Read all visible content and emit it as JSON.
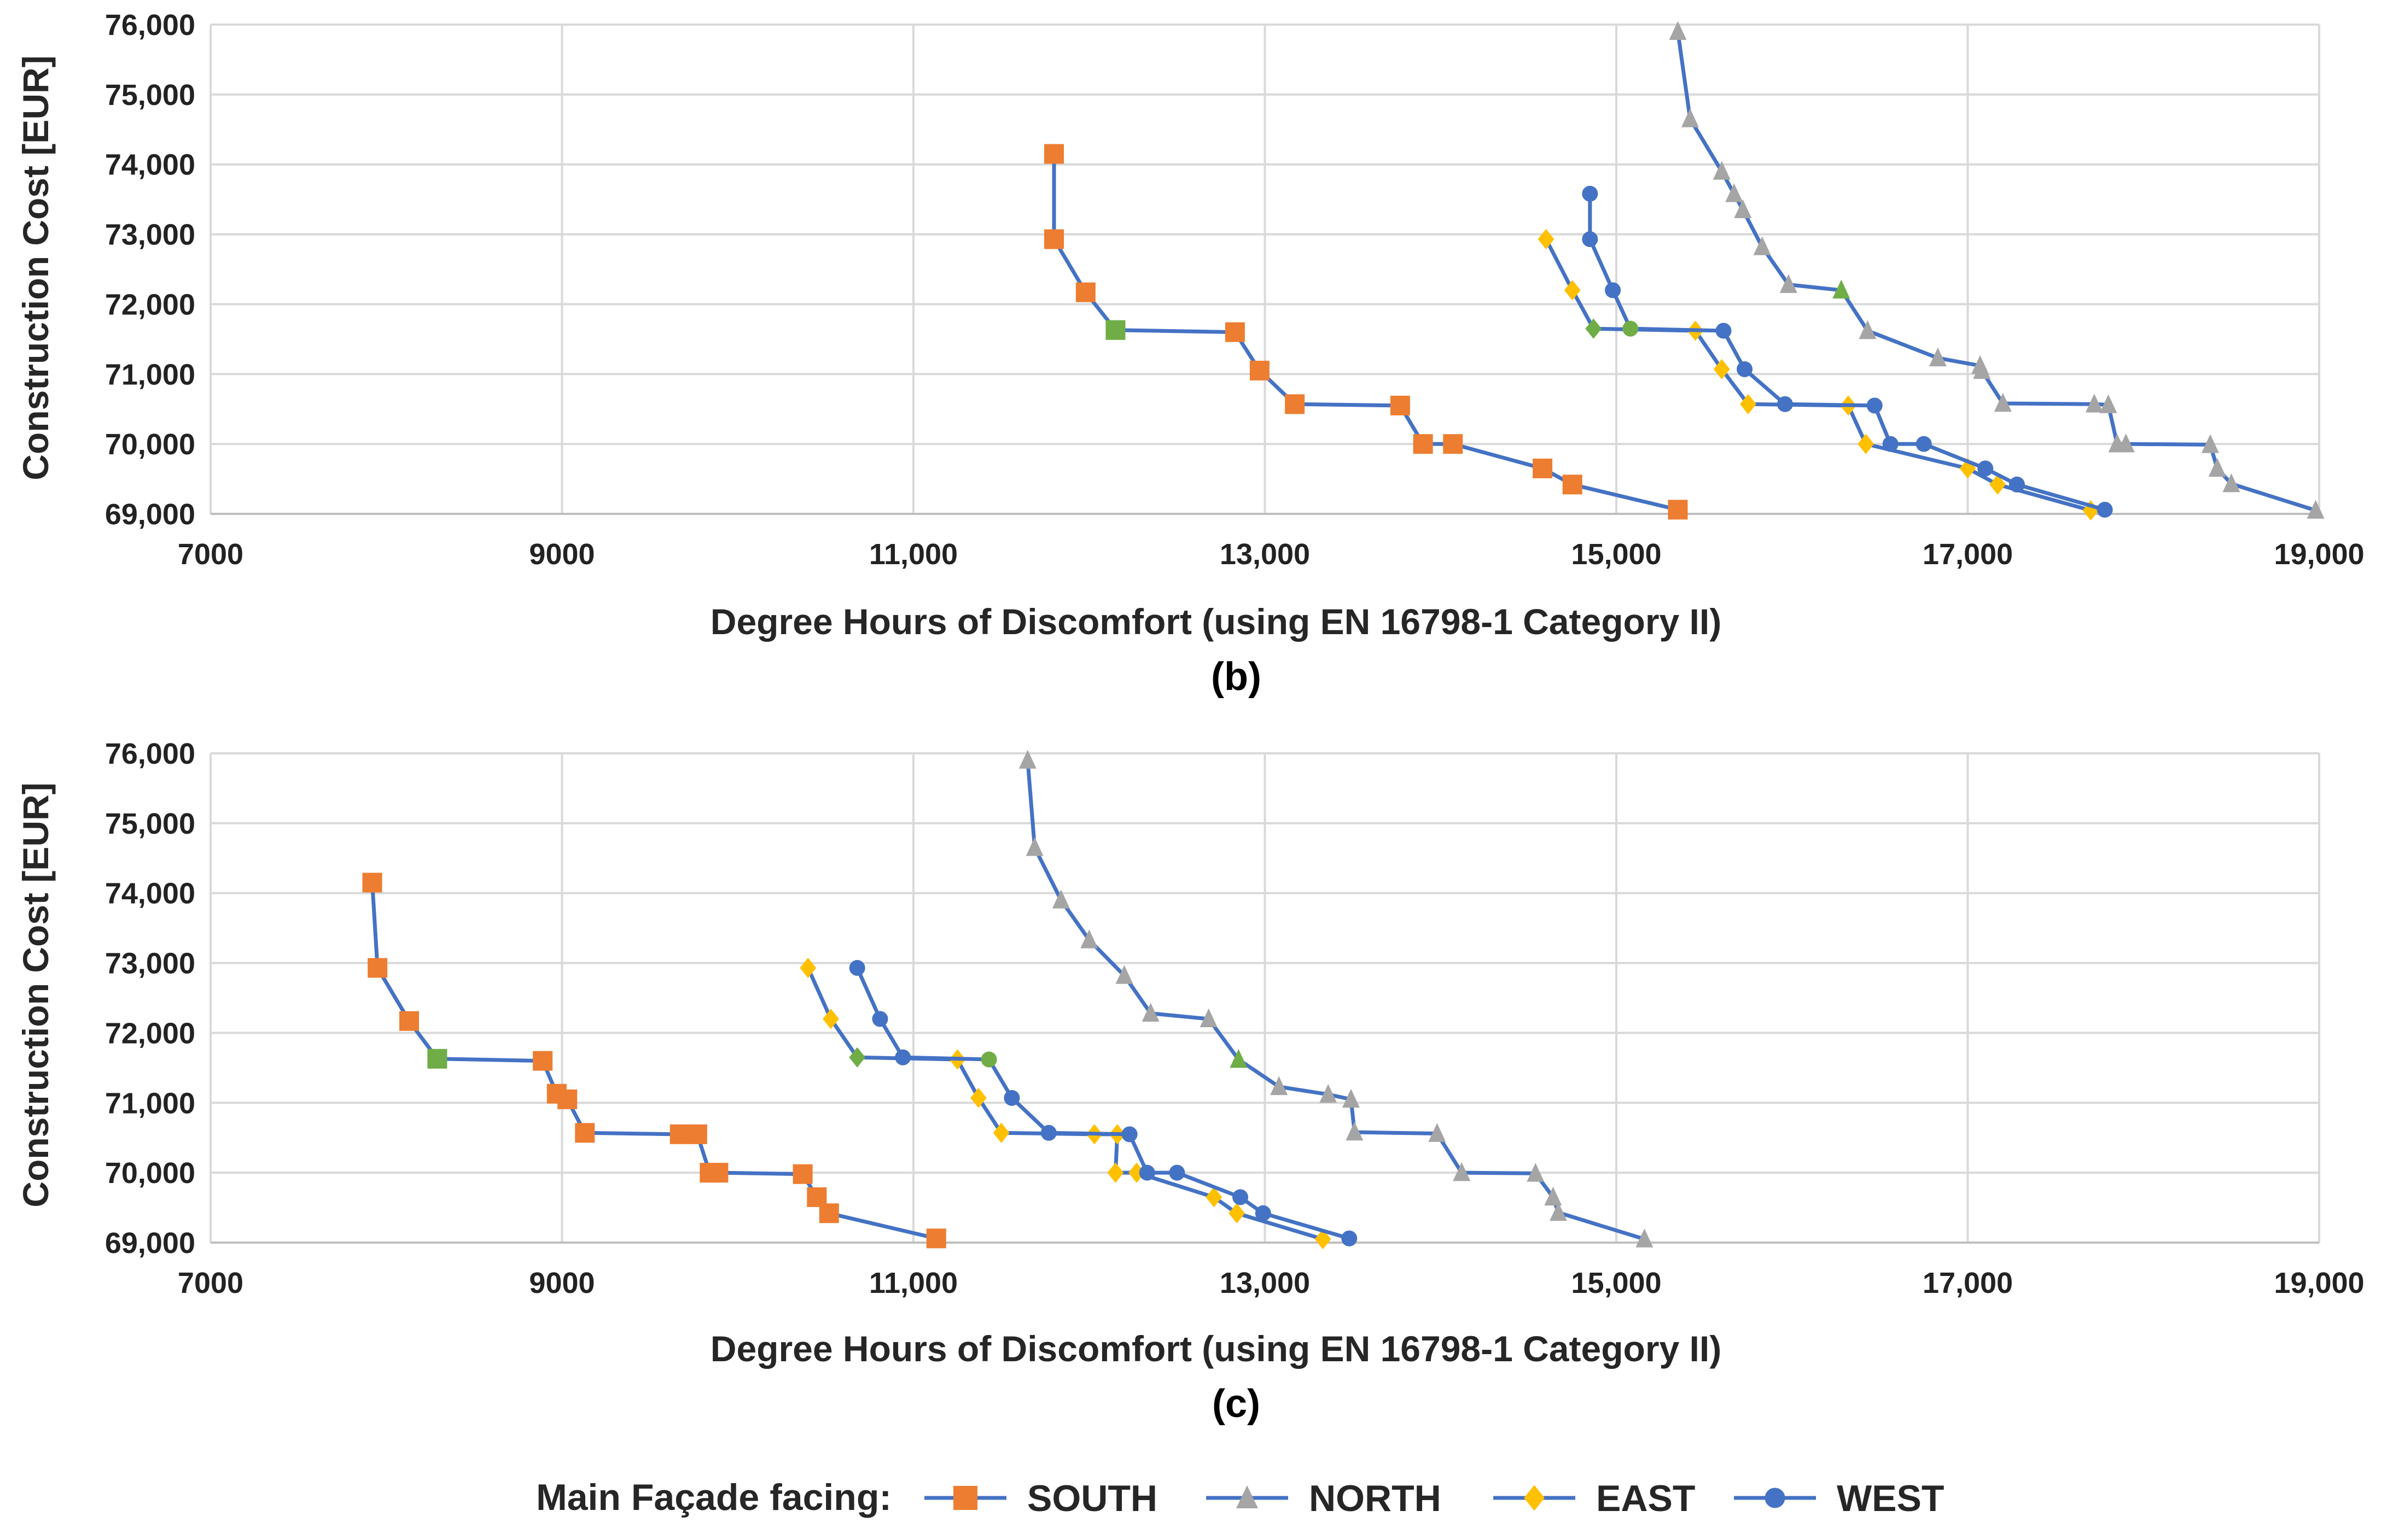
{
  "legend": {
    "title": "Main Façade facing:",
    "items": [
      {
        "name": "SOUTH",
        "marker": "square",
        "color": "#ED7D31"
      },
      {
        "name": "NORTH",
        "marker": "triangle",
        "color": "#A5A5A5"
      },
      {
        "name": "EAST",
        "marker": "diamond",
        "color": "#FFC000"
      },
      {
        "name": "WEST",
        "marker": "circle",
        "color": "#4472C4"
      }
    ]
  },
  "colors": {
    "line": "#4472C4",
    "grid": "#D9D9D9",
    "highlight": "#70AD47"
  },
  "chart_data": [
    {
      "type": "scatter",
      "panel_label": "(b)",
      "xlabel": "Degree Hours of Discomfort (using EN 16798-1 Category II)",
      "ylabel": "Construction Cost [EUR]",
      "xlim": [
        7000,
        19000
      ],
      "ylim": [
        69000,
        76000
      ],
      "xticks": [
        7000,
        9000,
        11000,
        13000,
        15000,
        17000,
        19000
      ],
      "xtick_labels": [
        "7000",
        "9000",
        "11,000",
        "13,000",
        "15,000",
        "17,000",
        "19,000"
      ],
      "yticks": [
        69000,
        70000,
        71000,
        72000,
        73000,
        74000,
        75000,
        76000
      ],
      "ytick_labels": [
        "69,000",
        "70,000",
        "71,000",
        "72,000",
        "73,000",
        "74,000",
        "75,000",
        "76,000"
      ],
      "series": [
        {
          "name": "SOUTH",
          "highlight_index": 3,
          "points": [
            [
              11800,
              74150
            ],
            [
              11800,
              72930
            ],
            [
              11980,
              72170
            ],
            [
              12150,
              71630
            ],
            [
              12830,
              71600
            ],
            [
              12970,
              71050
            ],
            [
              13170,
              70570
            ],
            [
              13770,
              70550
            ],
            [
              13900,
              70000
            ],
            [
              14070,
              70000
            ],
            [
              14580,
              69650
            ],
            [
              14750,
              69420
            ],
            [
              15350,
              69060
            ]
          ]
        },
        {
          "name": "NORTH",
          "highlight_index": 7,
          "points": [
            [
              15350,
              75900
            ],
            [
              15420,
              74650
            ],
            [
              15600,
              73900
            ],
            [
              15670,
              73580
            ],
            [
              15720,
              73350
            ],
            [
              15830,
              72820
            ],
            [
              15980,
              72280
            ],
            [
              16280,
              72200
            ],
            [
              16430,
              71620
            ],
            [
              16830,
              71230
            ],
            [
              17070,
              71120
            ],
            [
              17080,
              71050
            ],
            [
              17200,
              70580
            ],
            [
              17720,
              70570
            ],
            [
              17800,
              70560
            ],
            [
              17850,
              70000
            ],
            [
              17900,
              70000
            ],
            [
              18380,
              69990
            ],
            [
              18420,
              69650
            ],
            [
              18500,
              69430
            ],
            [
              18980,
              69050
            ]
          ]
        },
        {
          "name": "EAST",
          "highlight_index": 2,
          "points": [
            [
              14600,
              72930
            ],
            [
              14750,
              72200
            ],
            [
              14870,
              71650
            ],
            [
              15450,
              71620
            ],
            [
              15600,
              71070
            ],
            [
              15750,
              70570
            ],
            [
              16320,
              70550
            ],
            [
              16420,
              70000
            ],
            [
              17000,
              69650
            ],
            [
              17170,
              69420
            ],
            [
              17700,
              69050
            ]
          ]
        },
        {
          "name": "WEST",
          "highlight_index": 3,
          "points": [
            [
              14850,
              73580
            ],
            [
              14850,
              72930
            ],
            [
              14980,
              72200
            ],
            [
              15080,
              71650
            ],
            [
              15610,
              71620
            ],
            [
              15730,
              71070
            ],
            [
              15960,
              70570
            ],
            [
              16470,
              70550
            ],
            [
              16560,
              70000
            ],
            [
              16750,
              70000
            ],
            [
              17100,
              69650
            ],
            [
              17280,
              69420
            ],
            [
              17780,
              69060
            ]
          ]
        }
      ]
    },
    {
      "type": "scatter",
      "panel_label": "(c)",
      "xlabel": "Degree Hours of Discomfort (using EN 16798-1 Category II)",
      "ylabel": "Construction Cost [EUR]",
      "xlim": [
        7000,
        19000
      ],
      "ylim": [
        69000,
        76000
      ],
      "xticks": [
        7000,
        9000,
        11000,
        13000,
        15000,
        17000,
        19000
      ],
      "xtick_labels": [
        "7000",
        "9000",
        "11,000",
        "13,000",
        "15,000",
        "17,000",
        "19,000"
      ],
      "yticks": [
        69000,
        70000,
        71000,
        72000,
        73000,
        74000,
        75000,
        76000
      ],
      "ytick_labels": [
        "69,000",
        "70,000",
        "71,000",
        "72,000",
        "73,000",
        "74,000",
        "75,000",
        "76,000"
      ],
      "series": [
        {
          "name": "SOUTH",
          "highlight_index": 3,
          "points": [
            [
              7920,
              74150
            ],
            [
              7950,
              72930
            ],
            [
              8130,
              72170
            ],
            [
              8290,
              71630
            ],
            [
              8890,
              71600
            ],
            [
              8970,
              71130
            ],
            [
              9030,
              71050
            ],
            [
              9130,
              70570
            ],
            [
              9670,
              70550
            ],
            [
              9770,
              70550
            ],
            [
              9840,
              70000
            ],
            [
              9890,
              70000
            ],
            [
              10370,
              69980
            ],
            [
              10450,
              69650
            ],
            [
              10520,
              69420
            ],
            [
              11130,
              69060
            ]
          ]
        },
        {
          "name": "NORTH",
          "highlight_index": 7,
          "points": [
            [
              11650,
              75900
            ],
            [
              11690,
              74650
            ],
            [
              11840,
              73900
            ],
            [
              12000,
              73330
            ],
            [
              12200,
              72820
            ],
            [
              12350,
              72280
            ],
            [
              12680,
              72200
            ],
            [
              12850,
              71620
            ],
            [
              13080,
              71230
            ],
            [
              13360,
              71120
            ],
            [
              13490,
              71050
            ],
            [
              13510,
              70580
            ],
            [
              13980,
              70560
            ],
            [
              14120,
              70000
            ],
            [
              14540,
              69990
            ],
            [
              14640,
              69650
            ],
            [
              14670,
              69430
            ],
            [
              15160,
              69050
            ]
          ]
        },
        {
          "name": "EAST",
          "highlight_index": 2,
          "points": [
            [
              10400,
              72930
            ],
            [
              10530,
              72200
            ],
            [
              10680,
              71650
            ],
            [
              11250,
              71620
            ],
            [
              11370,
              71070
            ],
            [
              11500,
              70570
            ],
            [
              12030,
              70550
            ],
            [
              12160,
              70550
            ],
            [
              12150,
              70000
            ],
            [
              12270,
              70000
            ],
            [
              12710,
              69650
            ],
            [
              12840,
              69420
            ],
            [
              13330,
              69050
            ]
          ]
        },
        {
          "name": "WEST",
          "highlight_index": 3,
          "points": [
            [
              10680,
              72930
            ],
            [
              10810,
              72200
            ],
            [
              10940,
              71650
            ],
            [
              11430,
              71620
            ],
            [
              11560,
              71070
            ],
            [
              11770,
              70570
            ],
            [
              12230,
              70550
            ],
            [
              12330,
              70000
            ],
            [
              12500,
              70000
            ],
            [
              12860,
              69650
            ],
            [
              12990,
              69420
            ],
            [
              13480,
              69060
            ]
          ]
        }
      ]
    }
  ]
}
